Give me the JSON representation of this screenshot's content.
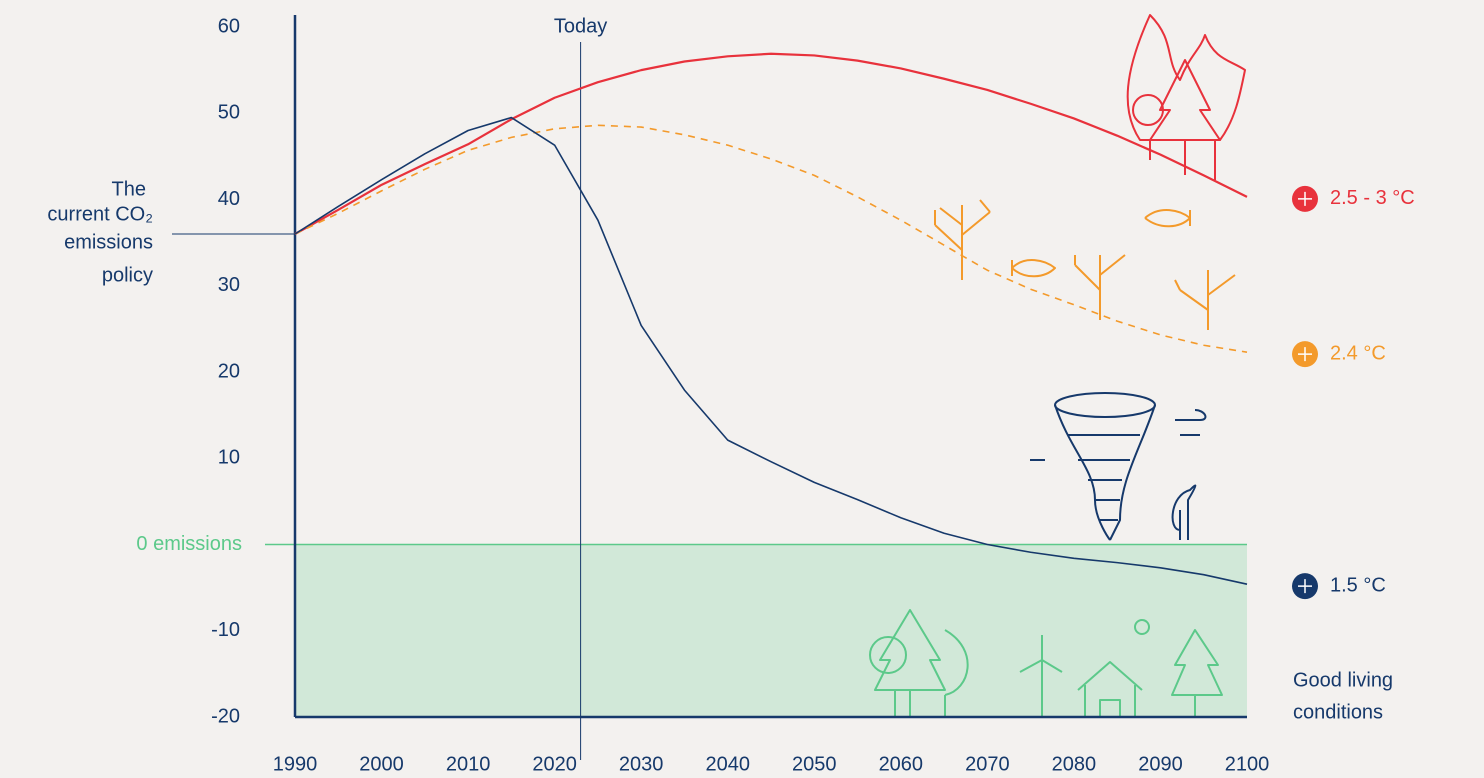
{
  "chart_data": {
    "type": "line",
    "x": [
      1990,
      1995,
      2000,
      2005,
      2010,
      2015,
      2020,
      2025,
      2030,
      2035,
      2040,
      2045,
      2050,
      2055,
      2060,
      2065,
      2070,
      2075,
      2080,
      2085,
      2090,
      2095,
      2100
    ],
    "series": [
      {
        "name": "2.5 - 3 °C",
        "color": "#e8323c",
        "dashed": false,
        "values": [
          36,
          38.8,
          41.7,
          44.1,
          46.4,
          49.3,
          51.8,
          53.6,
          55,
          56,
          56.6,
          56.9,
          56.7,
          56.1,
          55.2,
          54,
          52.7,
          51.1,
          49.4,
          47.4,
          45.2,
          42.8,
          40.3
        ]
      },
      {
        "name": "2.4 °C",
        "color": "#f39a2b",
        "dashed": true,
        "values": [
          36,
          38.4,
          41,
          43.5,
          45.7,
          47.2,
          48.2,
          48.6,
          48.4,
          47.5,
          46.3,
          44.7,
          42.8,
          40.3,
          37.6,
          34.7,
          31.8,
          29.6,
          27.8,
          25.9,
          24.3,
          23.1,
          22.3
        ]
      },
      {
        "name": "1.5 °C",
        "color": "#16396b",
        "dashed": false,
        "values": [
          36,
          39.2,
          42.3,
          45.3,
          48,
          49.5,
          46.3,
          37.6,
          25.4,
          17.9,
          12.1,
          9.6,
          7.2,
          5.2,
          3.1,
          1.3,
          0,
          -0.9,
          -1.6,
          -2.1,
          -2.7,
          -3.5,
          -4.6
        ]
      }
    ],
    "xlim": [
      1990,
      2100
    ],
    "ylim": [
      -20,
      60
    ],
    "xticks": [
      1990,
      2000,
      2010,
      2020,
      2030,
      2040,
      2050,
      2060,
      2070,
      2080,
      2090,
      2100
    ],
    "yticks": [
      -20,
      -10,
      {
        "value": 0,
        "label": "0 emissions"
      },
      10,
      20,
      30,
      40,
      50,
      60
    ],
    "zone": {
      "from": -20,
      "to": 0,
      "color": "#5cc98a",
      "label": [
        "Good living",
        "conditions"
      ]
    },
    "today": {
      "label": "Today",
      "x": 2023
    },
    "policy": {
      "label": [
        "The",
        "current CO₂",
        "emissions",
        "policy"
      ],
      "value": 36
    },
    "axis_color": "#16396b"
  }
}
